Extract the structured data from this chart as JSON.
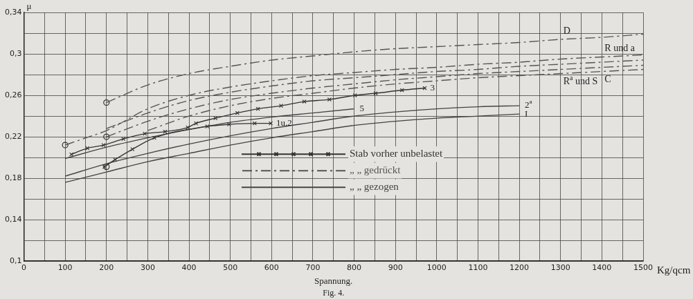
{
  "chart_data": {
    "type": "line",
    "xlabel": "Spannung.",
    "ylabel": "μ",
    "annotations": [
      "Kg/qcm",
      "Fig. 4.",
      {
        "text": "D",
        "x": 1300,
        "y": 0.314
      },
      {
        "text": "R und a",
        "x": 1400,
        "y": 0.297
      },
      {
        "text": "R$^{a}$ und S",
        "x": 1300,
        "y": 0.281
      },
      {
        "text": "C",
        "x": 1400,
        "y": 0.283
      },
      {
        "text": "3",
        "x": 971,
        "y": 0.267
      },
      {
        "text": "5",
        "x": 800,
        "y": 0.247
      },
      {
        "text": "2$^{a}$",
        "x": 1200,
        "y": 0.25
      },
      {
        "text": "I",
        "x": 1200,
        "y": 0.242
      },
      {
        "text": "1u.2",
        "x": 598,
        "y": 0.233
      }
    ],
    "xlim": [
      0,
      1500
    ],
    "ylim": [
      0.1,
      0.34
    ],
    "xticks": [
      0,
      {
        "value": 50,
        "label": null
      },
      100,
      {
        "value": 150,
        "label": null
      },
      200,
      {
        "value": 250,
        "label": null
      },
      300,
      {
        "value": 350,
        "label": null
      },
      400,
      {
        "value": 450,
        "label": null
      },
      500,
      {
        "value": 550,
        "label": null
      },
      600,
      {
        "value": 650,
        "label": null
      },
      700,
      {
        "value": 750,
        "label": null
      },
      800,
      {
        "value": 850,
        "label": null
      },
      900,
      {
        "value": 950,
        "label": null
      },
      1000,
      {
        "value": 1050,
        "label": null
      },
      1100,
      {
        "value": 1150,
        "label": null
      },
      1200,
      {
        "value": 1250,
        "label": null
      },
      1300,
      {
        "value": 1350,
        "label": null
      },
      1400,
      {
        "value": 1450,
        "label": null
      },
      1500
    ],
    "yticks": [
      {
        "value": 0.1,
        "label": "0,1"
      },
      {
        "value": 0.12,
        "label": null
      },
      {
        "value": 0.14,
        "label": "0,14"
      },
      {
        "value": 0.16,
        "label": null
      },
      {
        "value": 0.18,
        "label": "0,18"
      },
      {
        "value": 0.2,
        "label": null
      },
      {
        "value": 0.22,
        "label": "0,22"
      },
      {
        "value": 0.24,
        "label": null
      },
      {
        "value": 0.26,
        "label": "0,26"
      },
      {
        "value": 0.28,
        "label": null
      },
      {
        "value": 0.3,
        "label": "0,3"
      },
      {
        "value": 0.32,
        "label": null
      },
      {
        "value": 0.34,
        "label": "0,34"
      }
    ],
    "grid": true,
    "legend": "bottom right",
    "series": [
      {
        "name": "Stab vorher unbelastet",
        "color": "#333333",
        "marker": "cross",
        "line_style": "solid",
        "x": [
          115,
          154,
          193,
          241,
          293,
          342,
          397,
          417,
          464,
          517,
          567,
          623,
          679,
          740,
          802,
          852,
          916,
          971
        ],
        "values": [
          0.203,
          0.209,
          0.212,
          0.218,
          0.223,
          0.225,
          0.229,
          0.233,
          0.238,
          0.243,
          0.247,
          0.25,
          0.254,
          0.256,
          0.26,
          0.262,
          0.265,
          0.267
        ]
      },
      {
        "color": "#333333",
        "marker": "cross",
        "line_style": "solid",
        "x": [
          195,
          221,
          263,
          316,
          444,
          497,
          559,
          598
        ],
        "values": [
          0.191,
          0.198,
          0.208,
          0.219,
          0.23,
          0.232,
          0.233,
          0.233
        ]
      },
      {
        "name": "„ „ gedrückt",
        "color": "#555555",
        "marker": "none",
        "line_style": "dashed",
        "x": [
          200,
          300,
          400,
          500,
          600,
          700,
          800,
          900,
          1000,
          1100,
          1200,
          1300,
          1400,
          1500
        ],
        "values": [
          0.253,
          0.27,
          0.281,
          0.288,
          0.294,
          0.298,
          0.302,
          0.305,
          0.307,
          0.309,
          0.311,
          0.314,
          0.316,
          0.319
        ]
      },
      {
        "color": "#555555",
        "marker": "none",
        "line_style": "dashed",
        "x": [
          100,
          150,
          200,
          300,
          400,
          500,
          600,
          700,
          800,
          900,
          1000,
          1100,
          1200,
          1300,
          1400,
          1500
        ],
        "values": [
          0.212,
          0.219,
          0.226,
          0.247,
          0.26,
          0.268,
          0.274,
          0.279,
          0.282,
          0.285,
          0.287,
          0.29,
          0.292,
          0.295,
          0.297,
          0.299
        ]
      },
      {
        "color": "#555555",
        "marker": "none",
        "line_style": "dashed",
        "x": [
          200,
          300,
          400,
          500,
          600,
          700,
          800,
          900,
          1000,
          1100,
          1200,
          1300,
          1400,
          1500
        ],
        "values": [
          0.228,
          0.243,
          0.255,
          0.263,
          0.269,
          0.274,
          0.277,
          0.28,
          0.283,
          0.285,
          0.288,
          0.29,
          0.292,
          0.294
        ]
      },
      {
        "color": "#555555",
        "marker": "none",
        "line_style": "dashed",
        "x": [
          200,
          300,
          400,
          500,
          600,
          700,
          800,
          900,
          1000,
          1100,
          1200,
          1300,
          1400,
          1500
        ],
        "values": [
          0.22,
          0.235,
          0.247,
          0.256,
          0.262,
          0.267,
          0.271,
          0.275,
          0.278,
          0.281,
          0.283,
          0.285,
          0.287,
          0.289
        ]
      },
      {
        "color": "#555555",
        "marker": "none",
        "line_style": "dashed",
        "x": [
          300,
          400,
          500,
          600,
          700,
          800,
          900,
          1000,
          1100,
          1200,
          1300,
          1400,
          1500
        ],
        "values": [
          0.226,
          0.24,
          0.25,
          0.257,
          0.262,
          0.267,
          0.271,
          0.274,
          0.277,
          0.279,
          0.281,
          0.283,
          0.285
        ]
      },
      {
        "name": "„ „ gezogen",
        "color": "#444444",
        "marker": "none",
        "line_style": "solid",
        "x": [
          100,
          200,
          300,
          400,
          500,
          600,
          700,
          800
        ],
        "values": [
          0.199,
          0.21,
          0.219,
          0.227,
          0.234,
          0.239,
          0.243,
          0.247
        ]
      },
      {
        "color": "#444444",
        "marker": "none",
        "line_style": "solid",
        "x": [
          100,
          200,
          300,
          400,
          500,
          600,
          700,
          800,
          900,
          1000,
          1100,
          1200
        ],
        "values": [
          0.182,
          0.194,
          0.204,
          0.213,
          0.221,
          0.228,
          0.234,
          0.24,
          0.244,
          0.247,
          0.249,
          0.25
        ]
      },
      {
        "color": "#444444",
        "marker": "none",
        "line_style": "solid",
        "x": [
          100,
          200,
          300,
          400,
          500,
          600,
          700,
          800,
          900,
          1000,
          1100,
          1200
        ],
        "values": [
          0.176,
          0.186,
          0.196,
          0.204,
          0.212,
          0.219,
          0.225,
          0.231,
          0.235,
          0.238,
          0.24,
          0.242
        ]
      },
      {
        "type": "scatter",
        "color": "#333333",
        "marker": "circle",
        "x": [
          100,
          200,
          200,
          200
        ],
        "values": [
          0.212,
          0.253,
          0.22,
          0.191
        ]
      }
    ]
  }
}
